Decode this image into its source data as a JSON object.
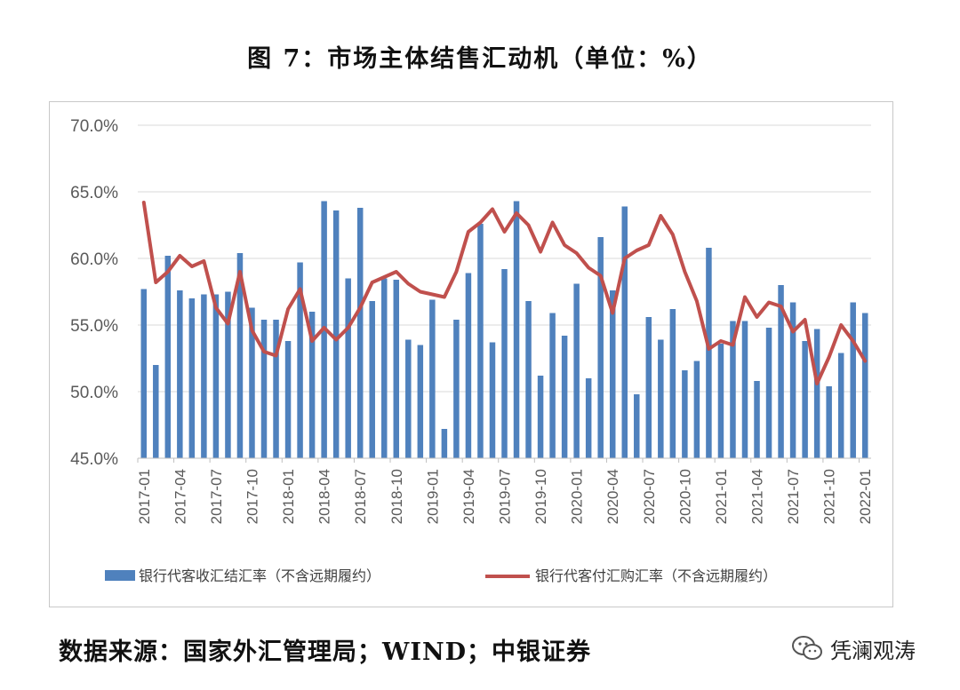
{
  "title": "图 7：市场主体结售汇动机（单位：%）",
  "source": "数据来源：国家外汇管理局；WIND；中银证券",
  "brand": "凭澜观涛",
  "colors": {
    "bar": "#4f81bd",
    "line": "#c0504d",
    "grid": "#d9d9d9",
    "axis": "#595959"
  },
  "chart_data": {
    "type": "bar",
    "ylim": [
      45,
      70
    ],
    "y_ticks": [
      "45.0%",
      "50.0%",
      "55.0%",
      "60.0%",
      "65.0%",
      "70.0%"
    ],
    "y_tick_values": [
      45,
      50,
      55,
      60,
      65,
      70
    ],
    "x_ticks": [
      "2017-01",
      "2017-04",
      "2017-07",
      "2017-10",
      "2018-01",
      "2018-04",
      "2018-07",
      "2018-10",
      "2019-01",
      "2019-04",
      "2019-07",
      "2019-10",
      "2020-01",
      "2020-04",
      "2020-07",
      "2020-10",
      "2021-01",
      "2021-04",
      "2021-07",
      "2021-10",
      "2022-01"
    ],
    "categories": [
      "2017-01",
      "2017-02",
      "2017-03",
      "2017-04",
      "2017-05",
      "2017-06",
      "2017-07",
      "2017-08",
      "2017-09",
      "2017-10",
      "2017-11",
      "2017-12",
      "2018-01",
      "2018-02",
      "2018-03",
      "2018-04",
      "2018-05",
      "2018-06",
      "2018-07",
      "2018-08",
      "2018-09",
      "2018-10",
      "2018-11",
      "2018-12",
      "2019-01",
      "2019-02",
      "2019-03",
      "2019-04",
      "2019-05",
      "2019-06",
      "2019-07",
      "2019-08",
      "2019-09",
      "2019-10",
      "2019-11",
      "2019-12",
      "2020-01",
      "2020-02",
      "2020-03",
      "2020-04",
      "2020-05",
      "2020-06",
      "2020-07",
      "2020-08",
      "2020-09",
      "2020-10",
      "2020-11",
      "2020-12",
      "2021-01",
      "2021-02",
      "2021-03",
      "2021-04",
      "2021-05",
      "2021-06",
      "2021-07",
      "2021-08",
      "2021-09",
      "2021-10",
      "2021-11",
      "2021-12",
      "2022-01"
    ],
    "series": [
      {
        "name": "银行代客收汇结汇率（不含远期履约）",
        "type": "bar",
        "values": [
          57.7,
          52.0,
          60.2,
          57.6,
          57.0,
          57.3,
          57.3,
          57.5,
          60.4,
          56.3,
          55.4,
          55.4,
          53.8,
          59.7,
          56.0,
          64.3,
          63.6,
          58.5,
          63.8,
          56.8,
          58.5,
          58.4,
          53.9,
          53.5,
          56.9,
          47.2,
          55.4,
          58.9,
          62.6,
          53.7,
          59.2,
          64.3,
          56.8,
          51.2,
          55.9,
          54.2,
          58.1,
          51.0,
          61.6,
          57.6,
          63.9,
          49.8,
          55.6,
          53.9,
          56.2,
          51.6,
          52.3,
          60.8,
          53.6,
          55.3,
          55.3,
          50.8,
          54.8,
          58.0,
          56.7,
          53.8,
          54.7,
          50.4,
          52.9,
          56.7,
          55.9
        ]
      },
      {
        "name": "银行代客付汇购汇率（不含远期履约）",
        "type": "line",
        "values": [
          64.2,
          58.2,
          59.0,
          60.2,
          59.4,
          59.8,
          56.3,
          55.1,
          59.0,
          54.6,
          53.0,
          52.7,
          56.2,
          57.7,
          53.8,
          54.8,
          53.9,
          54.8,
          56.3,
          58.2,
          58.6,
          59.0,
          58.1,
          57.5,
          57.3,
          57.1,
          59.0,
          62.0,
          62.7,
          63.7,
          62.0,
          63.4,
          62.5,
          60.5,
          62.7,
          61.0,
          60.4,
          59.3,
          58.7,
          55.9,
          60.0,
          60.6,
          61.0,
          63.2,
          61.8,
          59.0,
          56.8,
          53.2,
          53.8,
          53.5,
          57.1,
          55.6,
          56.7,
          56.4,
          54.5,
          55.4,
          50.6,
          52.6,
          55.0,
          53.8,
          52.3
        ]
      }
    ]
  }
}
